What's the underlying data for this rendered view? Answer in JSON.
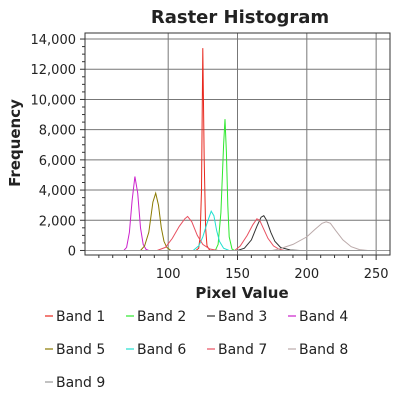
{
  "chart_data": {
    "type": "line",
    "title": "Raster Histogram",
    "xlabel": "Pixel Value",
    "ylabel": "Frequency",
    "xlim": [
      40,
      260
    ],
    "ylim": [
      -300,
      14400
    ],
    "x_ticks": [
      100,
      150,
      200,
      250
    ],
    "x_tick_labels": [
      "100",
      "150",
      "200",
      "250"
    ],
    "y_ticks": [
      0,
      2000,
      4000,
      6000,
      8000,
      10000,
      12000,
      14000
    ],
    "y_tick_labels": [
      "0",
      "2,000",
      "4,000",
      "6,000",
      "8,000",
      "10,000",
      "12,000",
      "14,000"
    ],
    "grid": true,
    "legend_position": "bottom",
    "series": [
      {
        "name": "Band 1",
        "color": "#e8281e",
        "points": [
          [
            40,
            0
          ],
          [
            120,
            0
          ],
          [
            122,
            150
          ],
          [
            123,
            900
          ],
          [
            124,
            4000
          ],
          [
            125,
            13400
          ],
          [
            126,
            6000
          ],
          [
            127,
            1500
          ],
          [
            128,
            300
          ],
          [
            130,
            0
          ],
          [
            260,
            0
          ]
        ]
      },
      {
        "name": "Band 2",
        "color": "#2ee82e",
        "points": [
          [
            40,
            0
          ],
          [
            134,
            0
          ],
          [
            136,
            400
          ],
          [
            138,
            2500
          ],
          [
            140,
            7000
          ],
          [
            141,
            8700
          ],
          [
            142,
            6500
          ],
          [
            143,
            3000
          ],
          [
            144,
            900
          ],
          [
            146,
            100
          ],
          [
            148,
            0
          ],
          [
            260,
            0
          ]
        ]
      },
      {
        "name": "Band 3",
        "color": "#333333",
        "points": [
          [
            40,
            0
          ],
          [
            150,
            0
          ],
          [
            155,
            150
          ],
          [
            160,
            700
          ],
          [
            164,
            1600
          ],
          [
            167,
            2200
          ],
          [
            169,
            2300
          ],
          [
            171,
            2000
          ],
          [
            174,
            1200
          ],
          [
            177,
            600
          ],
          [
            181,
            200
          ],
          [
            188,
            30
          ],
          [
            195,
            0
          ],
          [
            260,
            0
          ]
        ]
      },
      {
        "name": "Band 4",
        "color": "#cc22cc",
        "points": [
          [
            40,
            0
          ],
          [
            68,
            0
          ],
          [
            70,
            200
          ],
          [
            72,
            1200
          ],
          [
            74,
            3300
          ],
          [
            76,
            4900
          ],
          [
            78,
            3800
          ],
          [
            80,
            1500
          ],
          [
            82,
            400
          ],
          [
            84,
            80
          ],
          [
            86,
            0
          ],
          [
            260,
            0
          ]
        ]
      },
      {
        "name": "Band 5",
        "color": "#8a7a00",
        "points": [
          [
            40,
            0
          ],
          [
            80,
            0
          ],
          [
            83,
            300
          ],
          [
            86,
            1200
          ],
          [
            89,
            3200
          ],
          [
            91,
            3800
          ],
          [
            93,
            3000
          ],
          [
            95,
            1500
          ],
          [
            97,
            600
          ],
          [
            99,
            200
          ],
          [
            102,
            0
          ],
          [
            260,
            0
          ]
        ]
      },
      {
        "name": "Band 6",
        "color": "#22e0d0",
        "points": [
          [
            40,
            0
          ],
          [
            118,
            0
          ],
          [
            122,
            300
          ],
          [
            125,
            900
          ],
          [
            128,
            1800
          ],
          [
            131,
            2600
          ],
          [
            133,
            2300
          ],
          [
            135,
            1300
          ],
          [
            137,
            600
          ],
          [
            140,
            150
          ],
          [
            144,
            0
          ],
          [
            260,
            0
          ]
        ]
      },
      {
        "name": "Band 7",
        "color": "#e85060",
        "points": [
          [
            40,
            0
          ],
          [
            92,
            0
          ],
          [
            98,
            200
          ],
          [
            103,
            800
          ],
          [
            108,
            1600
          ],
          [
            112,
            2100
          ],
          [
            114,
            2250
          ],
          [
            117,
            1900
          ],
          [
            121,
            1000
          ],
          [
            125,
            400
          ],
          [
            130,
            100
          ],
          [
            136,
            0
          ],
          [
            148,
            0
          ],
          [
            152,
            300
          ],
          [
            157,
            1000
          ],
          [
            161,
            1700
          ],
          [
            164,
            2100
          ],
          [
            166,
            2000
          ],
          [
            169,
            1400
          ],
          [
            172,
            800
          ],
          [
            176,
            300
          ],
          [
            180,
            80
          ],
          [
            184,
            0
          ],
          [
            260,
            0
          ]
        ]
      },
      {
        "name": "Band 8",
        "color": "#bbaaaa",
        "points": [
          [
            40,
            0
          ],
          [
            175,
            0
          ],
          [
            180,
            100
          ],
          [
            190,
            400
          ],
          [
            200,
            900
          ],
          [
            206,
            1400
          ],
          [
            211,
            1800
          ],
          [
            214,
            1900
          ],
          [
            217,
            1800
          ],
          [
            221,
            1300
          ],
          [
            226,
            700
          ],
          [
            232,
            250
          ],
          [
            238,
            60
          ],
          [
            244,
            0
          ],
          [
            260,
            0
          ]
        ]
      },
      {
        "name": "Band 9",
        "color": "#999999",
        "points": [
          [
            40,
            0
          ],
          [
            255,
            0
          ],
          [
            260,
            0
          ]
        ]
      }
    ]
  }
}
